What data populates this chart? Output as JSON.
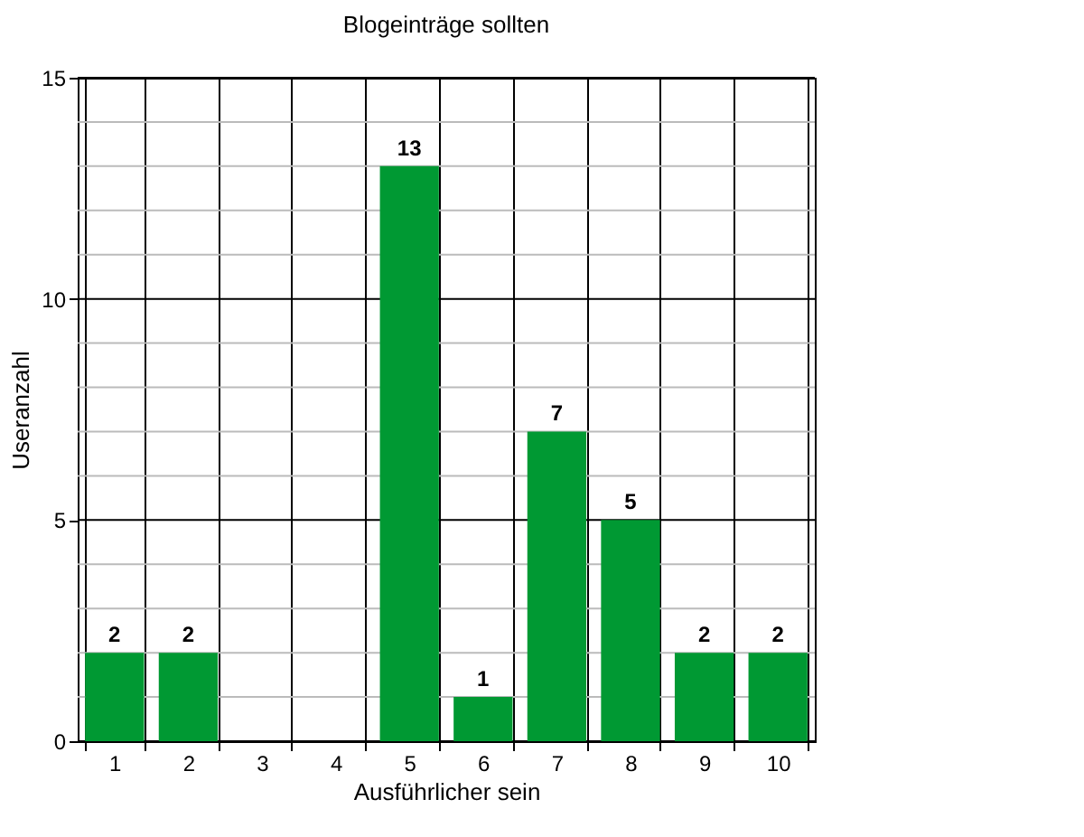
{
  "chart_data": {
    "type": "bar",
    "title": "Blogeinträge sollten",
    "xlabel": "Ausführlicher sein",
    "ylabel": "Useranzahl",
    "categories": [
      "1",
      "2",
      "3",
      "4",
      "5",
      "6",
      "7",
      "8",
      "9",
      "10"
    ],
    "series": [
      {
        "color": "#009933",
        "values": [
          2,
          2,
          0,
          0,
          13,
          1,
          7,
          5,
          2,
          2
        ],
        "value_labels": [
          "2",
          "2",
          null,
          null,
          "13",
          "1",
          "7",
          "5",
          "2",
          "2"
        ]
      }
    ],
    "ylim": [
      0,
      15
    ],
    "yticks": [
      0,
      {
        "value": 1,
        "label": null
      },
      {
        "value": 2,
        "label": null
      },
      {
        "value": 3,
        "label": null
      },
      {
        "value": 4,
        "label": null
      },
      5,
      {
        "value": 6,
        "label": null
      },
      {
        "value": 7,
        "label": null
      },
      {
        "value": 8,
        "label": null
      },
      {
        "value": 9,
        "label": null
      },
      10,
      {
        "value": 11,
        "label": null
      },
      {
        "value": 12,
        "label": null
      },
      {
        "value": 13,
        "label": null
      },
      {
        "value": 14,
        "label": null
      },
      15
    ],
    "grid": true
  }
}
